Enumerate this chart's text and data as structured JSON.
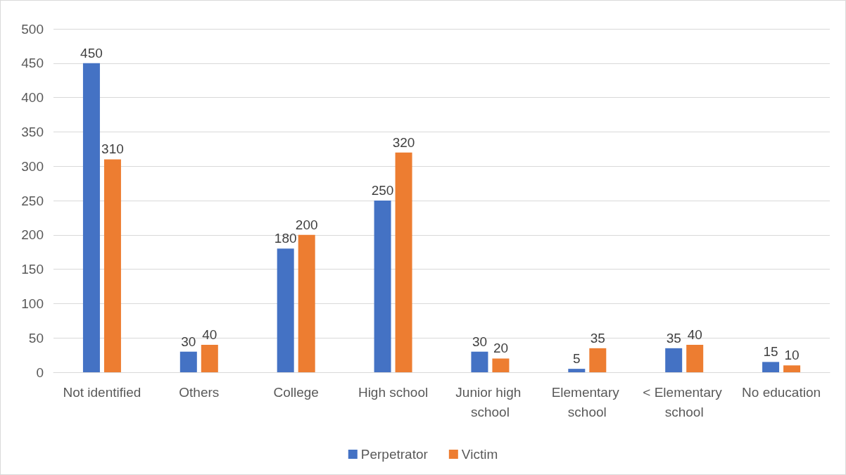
{
  "chart_data": {
    "type": "bar",
    "categories": [
      "Not identified",
      "Others",
      "College",
      "High school",
      "Junior high school",
      "Elementary school",
      "< Elementary school",
      "No education"
    ],
    "series": [
      {
        "name": "Perpetrator",
        "color": "#4472c4",
        "values": [
          450,
          30,
          180,
          250,
          30,
          5,
          35,
          15
        ]
      },
      {
        "name": "Victim",
        "color": "#ed7d31",
        "values": [
          310,
          40,
          200,
          320,
          20,
          35,
          40,
          10
        ]
      }
    ],
    "ylim": [
      0,
      500
    ],
    "yticks": [
      0,
      50,
      100,
      150,
      200,
      250,
      300,
      350,
      400,
      450,
      500
    ],
    "grid": "y",
    "legend": "bottom",
    "data_labels": true
  }
}
